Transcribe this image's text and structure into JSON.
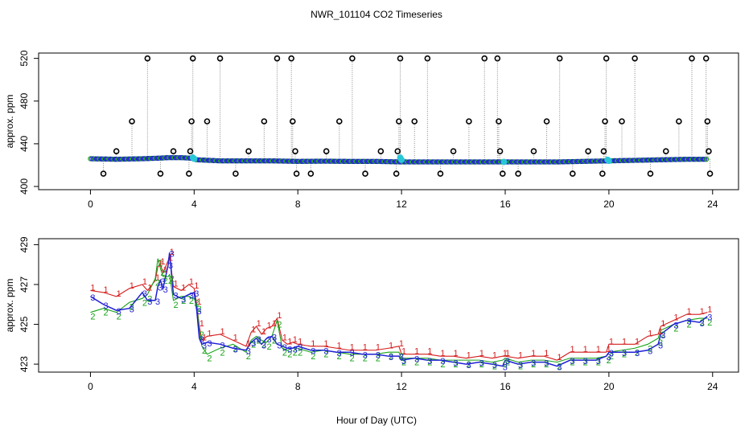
{
  "colors": {
    "frame": "#000000",
    "blue": "#1f1fd6",
    "green": "#17a317",
    "red": "#d41c1c",
    "cyan": "#29c7d6",
    "grey": "#8c8c8c"
  },
  "chart_data": {
    "title": "NWR_101104  CO2 Timeseries",
    "xlabel": "Hour of Day (UTC)",
    "panels": [
      {
        "type": "scatter",
        "ylabel": "approx. ppm",
        "xlim": [
          -2,
          25
        ],
        "ylim": [
          397,
          525
        ],
        "xticks": [
          0,
          4,
          8,
          12,
          16,
          20,
          24
        ],
        "yticks": [
          400,
          440,
          480,
          520
        ],
        "baseline": {
          "x": [
            0,
            1,
            2,
            2.6,
            3.0,
            3.5,
            3.9,
            4.1,
            5,
            6,
            7,
            8,
            9,
            10,
            11,
            12,
            13,
            14,
            15,
            16,
            17,
            18,
            19,
            20,
            21,
            22,
            23,
            23.8
          ],
          "values": [
            426,
            425.5,
            426,
            426.5,
            427,
            427,
            426.5,
            425,
            424,
            424,
            424,
            423.5,
            423.7,
            423.5,
            423.5,
            423,
            423,
            423,
            423,
            423,
            423,
            423,
            423.5,
            424,
            424.5,
            425,
            425.5,
            425.5
          ]
        },
        "spikes": {
          "x": [
            0.5,
            1.0,
            1.6,
            2.2,
            2.7,
            3.2,
            3.8,
            3.85,
            3.9,
            3.95,
            4.5,
            5.0,
            5.6,
            6.1,
            6.7,
            7.2,
            7.75,
            7.8,
            7.9,
            7.95,
            8.5,
            9.1,
            9.6,
            10.1,
            10.6,
            11.2,
            11.8,
            11.85,
            11.9,
            11.95,
            12.5,
            13.0,
            13.5,
            14.0,
            14.6,
            15.2,
            15.7,
            15.75,
            15.8,
            15.9,
            16.5,
            17.1,
            17.6,
            18.1,
            18.6,
            19.2,
            19.75,
            19.8,
            19.85,
            19.9,
            20.5,
            21.0,
            21.6,
            22.2,
            22.7,
            23.2,
            23.75,
            23.8,
            23.85,
            23.9
          ],
          "values": [
            412,
            433,
            461,
            520,
            412,
            433,
            412,
            433,
            461,
            520,
            461,
            520,
            412,
            433,
            461,
            520,
            520,
            461,
            433,
            412,
            412,
            433,
            461,
            520,
            412,
            433,
            412,
            433,
            461,
            520,
            461,
            520,
            412,
            433,
            461,
            520,
            520,
            461,
            433,
            412,
            412,
            433,
            461,
            520,
            412,
            433,
            412,
            433,
            461,
            520,
            461,
            520,
            412,
            433,
            461,
            520,
            520,
            461,
            433,
            412
          ]
        },
        "highlights": {
          "x": [
            3.95,
            4.0,
            11.95,
            12.0,
            15.95,
            19.95,
            20.0
          ],
          "values": [
            427,
            426,
            427,
            425,
            423,
            425,
            424
          ]
        }
      },
      {
        "type": "line",
        "ylabel": "approx. ppm",
        "xlim": [
          -2,
          25
        ],
        "ylim": [
          422.6,
          429.3
        ],
        "xticks": [
          0,
          4,
          8,
          12,
          16,
          20,
          24
        ],
        "yticks": [
          423,
          425,
          427,
          429
        ],
        "series": [
          {
            "name": "1",
            "x": [
              0.0,
              0.5,
              1.0,
              1.5,
              2.0,
              2.2,
              2.5,
              2.6,
              2.7,
              2.8,
              3.0,
              3.05,
              3.2,
              3.5,
              3.8,
              4.0,
              4.1,
              4.2,
              4.3,
              4.5,
              5.0,
              5.5,
              6.0,
              6.2,
              6.4,
              6.6,
              6.8,
              7.0,
              7.2,
              7.4,
              7.6,
              7.8,
              8.0,
              8.5,
              9.0,
              9.5,
              10.0,
              10.5,
              11.0,
              11.5,
              11.9,
              12.0,
              12.5,
              13.0,
              13.5,
              14.0,
              14.5,
              15.0,
              15.5,
              15.9,
              16.0,
              16.5,
              17.0,
              17.5,
              18.0,
              18.5,
              19.0,
              19.5,
              19.9,
              20.0,
              20.5,
              21.0,
              21.5,
              21.9,
              22.0,
              22.5,
              23.0,
              23.5,
              23.8
            ],
            "values": [
              426.7,
              426.6,
              426.4,
              426.8,
              427.0,
              426.7,
              427.2,
              427.9,
              428.0,
              427.6,
              428.2,
              428.5,
              426.9,
              426.7,
              427.0,
              426.8,
              426.0,
              424.9,
              424.2,
              424.4,
              424.5,
              424.2,
              423.9,
              424.6,
              424.9,
              424.5,
              424.8,
              424.9,
              425.3,
              424.2,
              424.0,
              424.1,
              424.0,
              423.9,
              423.9,
              423.8,
              423.7,
              423.7,
              423.7,
              423.8,
              423.9,
              423.5,
              423.5,
              423.5,
              423.4,
              423.4,
              423.3,
              423.4,
              423.3,
              423.4,
              423.4,
              423.3,
              423.4,
              423.4,
              423.2,
              423.6,
              423.6,
              423.6,
              423.6,
              424.0,
              424.0,
              424.0,
              424.4,
              424.5,
              424.9,
              425.2,
              425.5,
              425.5,
              425.6
            ]
          },
          {
            "name": "2",
            "x": [
              0.0,
              0.5,
              1.0,
              1.5,
              2.0,
              2.2,
              2.5,
              2.6,
              2.7,
              2.8,
              3.0,
              3.05,
              3.2,
              3.5,
              3.8,
              4.0,
              4.1,
              4.2,
              4.3,
              4.5,
              5.0,
              5.5,
              6.0,
              6.2,
              6.4,
              6.6,
              6.8,
              7.0,
              7.2,
              7.4,
              7.6,
              7.8,
              8.0,
              8.5,
              9.0,
              9.5,
              10.0,
              10.5,
              11.0,
              11.5,
              11.9,
              12.0,
              12.5,
              13.0,
              13.5,
              14.0,
              14.5,
              15.0,
              15.5,
              15.9,
              16.0,
              16.5,
              17.0,
              17.5,
              18.0,
              18.5,
              19.0,
              19.5,
              19.9,
              20.0,
              20.5,
              21.0,
              21.5,
              21.9,
              22.0,
              22.5,
              23.0,
              23.5,
              23.8
            ],
            "values": [
              425.6,
              425.8,
              425.6,
              426.1,
              426.3,
              426.5,
              427.3,
              428.3,
              427.8,
              427.4,
              427.4,
              427.5,
              426.2,
              426.4,
              426.4,
              426.3,
              426.0,
              424.7,
              423.9,
              423.5,
              423.8,
              424.0,
              423.6,
              424.2,
              424.4,
              424.2,
              424.1,
              424.4,
              425.2,
              423.8,
              423.7,
              423.8,
              423.8,
              423.6,
              423.7,
              423.6,
              423.5,
              423.5,
              423.5,
              423.6,
              423.6,
              423.3,
              423.3,
              423.3,
              423.2,
              423.2,
              423.2,
              423.2,
              423.1,
              423.2,
              423.3,
              423.1,
              423.2,
              423.2,
              423.1,
              423.3,
              423.3,
              423.3,
              423.4,
              423.6,
              423.7,
              423.8,
              424.0,
              424.3,
              424.7,
              425.0,
              425.2,
              425.3,
              425.3
            ]
          },
          {
            "name": "3",
            "x": [
              0.0,
              0.5,
              1.0,
              1.5,
              2.0,
              2.2,
              2.5,
              2.6,
              2.7,
              2.8,
              3.0,
              3.05,
              3.2,
              3.5,
              3.8,
              4.0,
              4.1,
              4.2,
              4.3,
              4.5,
              5.0,
              5.5,
              6.0,
              6.2,
              6.4,
              6.6,
              6.8,
              7.0,
              7.2,
              7.4,
              7.6,
              7.8,
              8.0,
              8.5,
              9.0,
              9.5,
              10.0,
              10.5,
              11.0,
              11.5,
              11.9,
              12.0,
              12.5,
              13.0,
              13.5,
              14.0,
              14.5,
              15.0,
              15.5,
              15.9,
              16.0,
              16.5,
              17.0,
              17.5,
              18.0,
              18.5,
              19.0,
              19.5,
              19.9,
              20.0,
              20.5,
              21.0,
              21.5,
              21.9,
              22.0,
              22.5,
              23.0,
              23.5,
              23.8
            ],
            "values": [
              426.4,
              426.0,
              425.7,
              425.8,
              426.6,
              426.2,
              426.2,
              426.9,
              427.2,
              426.8,
              428.0,
              428.6,
              426.5,
              426.3,
              426.5,
              426.6,
              425.7,
              424.3,
              424.0,
              424.1,
              424.0,
              423.8,
              423.7,
              424.1,
              424.3,
              424.0,
              424.3,
              424.4,
              424.0,
              423.9,
              423.8,
              423.8,
              423.9,
              423.7,
              423.7,
              423.6,
              423.6,
              423.5,
              423.5,
              423.4,
              423.4,
              423.2,
              423.3,
              423.2,
              423.2,
              423.1,
              423.0,
              423.1,
              423.0,
              422.9,
              423.2,
              423.0,
              423.1,
              423.1,
              422.9,
              423.2,
              423.2,
              423.2,
              423.4,
              423.6,
              423.6,
              423.6,
              423.7,
              424.0,
              424.5,
              425.0,
              425.2,
              425.1,
              425.4
            ]
          }
        ]
      }
    ]
  }
}
